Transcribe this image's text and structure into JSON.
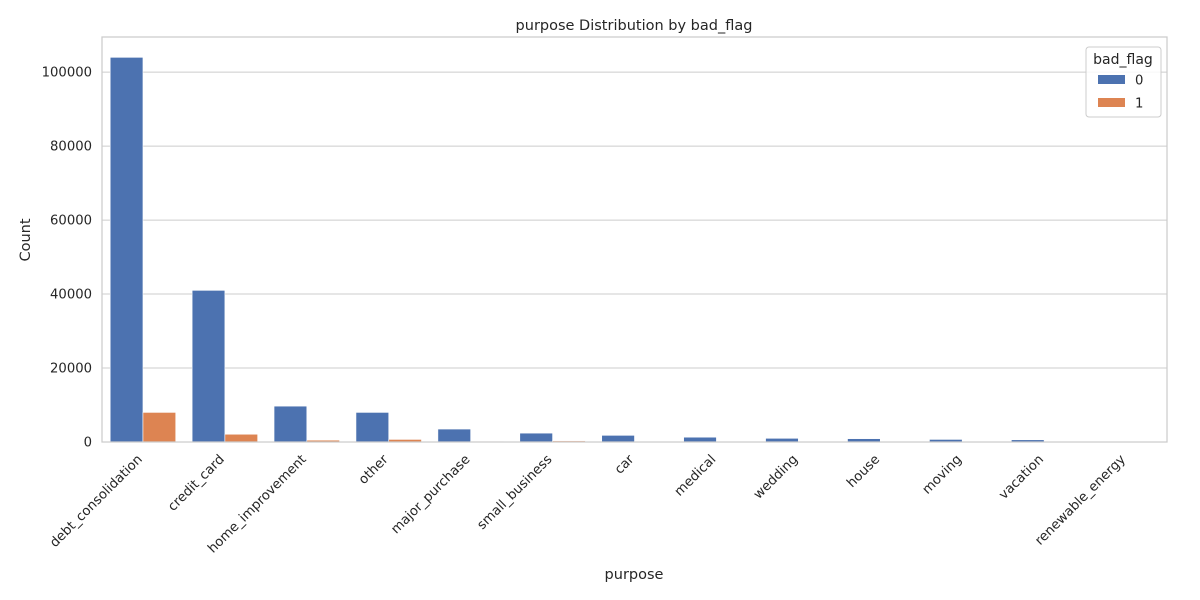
{
  "chart_data": {
    "type": "bar",
    "title": "purpose Distribution by bad_flag",
    "xlabel": "purpose",
    "ylabel": "Count",
    "ylim": [
      0,
      109500
    ],
    "yticks": [
      0,
      20000,
      40000,
      60000,
      80000,
      100000
    ],
    "ytick_labels": [
      "0",
      "20000",
      "40000",
      "60000",
      "80000",
      "100000"
    ],
    "grid": "horizontal",
    "legend_placement": "top-right",
    "legend_title": "bad_flag",
    "categories": [
      "debt_consolidation",
      "credit_card",
      "home_improvement",
      "other",
      "major_purchase",
      "small_business",
      "car",
      "medical",
      "wedding",
      "house",
      "moving",
      "vacation",
      "renewable_energy"
    ],
    "series": [
      {
        "name": "0",
        "color": "#4c72b0",
        "values": [
          104000,
          41000,
          9700,
          8000,
          3500,
          2400,
          1800,
          1300,
          1000,
          900,
          700,
          600,
          100
        ]
      },
      {
        "name": "1",
        "color": "#dd8452",
        "values": [
          8000,
          2100,
          500,
          700,
          150,
          300,
          100,
          100,
          50,
          50,
          80,
          50,
          10
        ]
      }
    ]
  }
}
